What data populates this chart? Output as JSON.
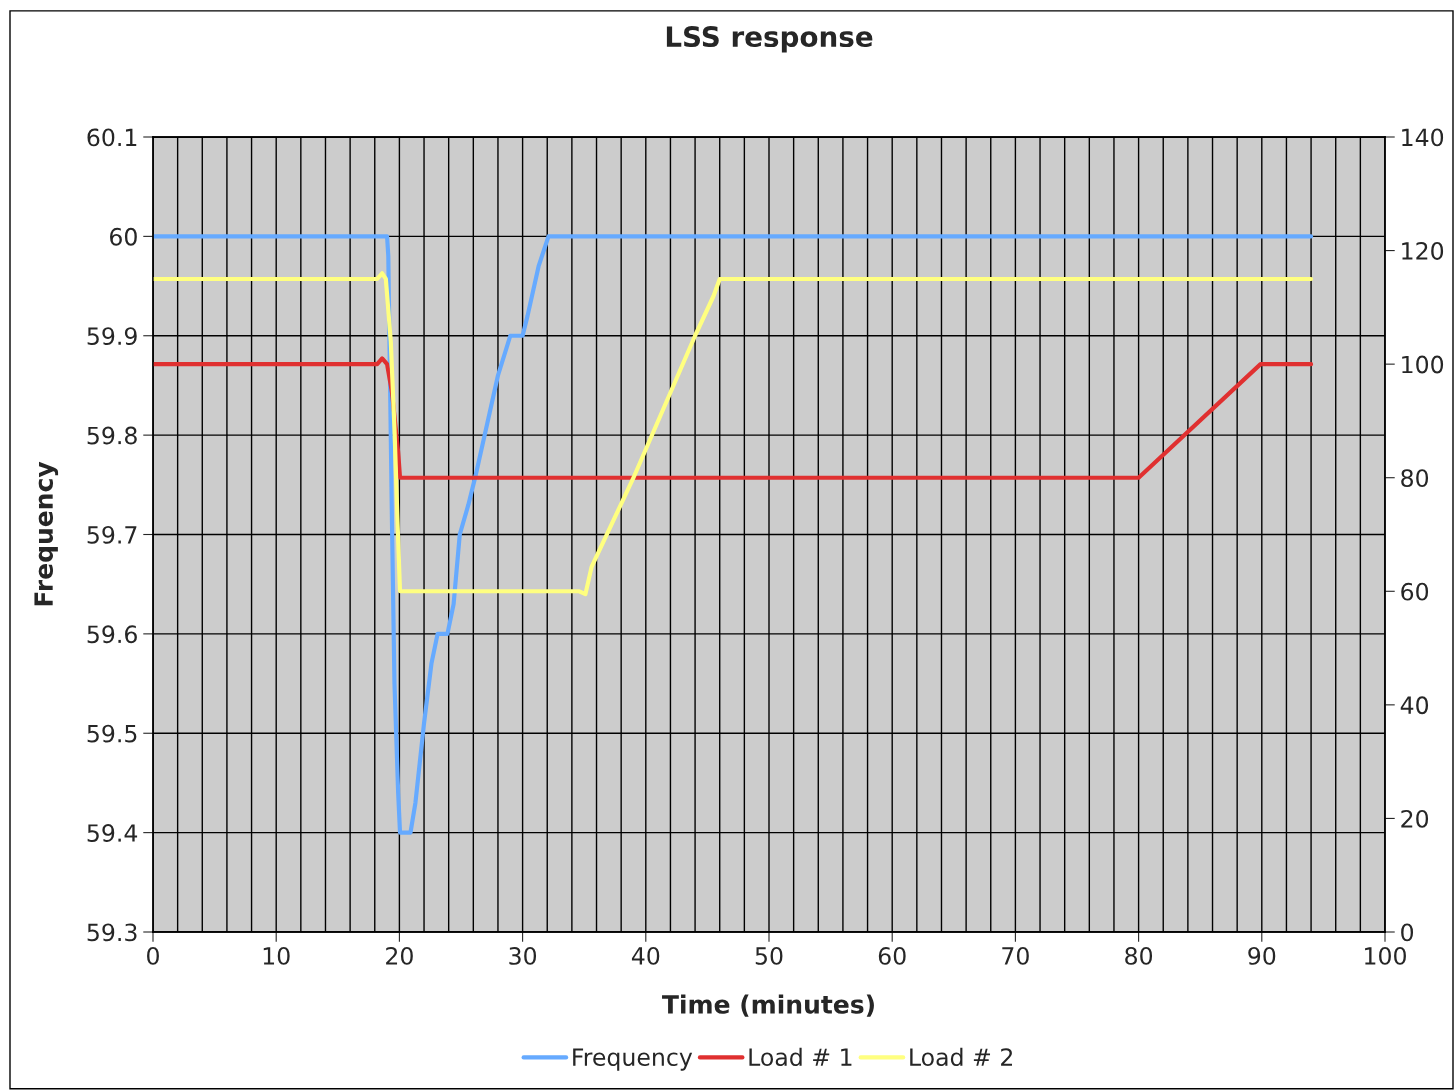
{
  "chart_data": {
    "type": "line",
    "title": "LSS response",
    "xlabel": "Time (minutes)",
    "ylabel": "Frequency",
    "xlim": [
      0,
      100
    ],
    "xticks": [
      0,
      {
        "value": 2,
        "label": null
      },
      {
        "value": 4,
        "label": null
      },
      {
        "value": 6,
        "label": null
      },
      {
        "value": 8,
        "label": null
      },
      10,
      {
        "value": 12,
        "label": null
      },
      {
        "value": 14,
        "label": null
      },
      {
        "value": 16,
        "label": null
      },
      {
        "value": 18,
        "label": null
      },
      20,
      {
        "value": 22,
        "label": null
      },
      {
        "value": 24,
        "label": null
      },
      {
        "value": 26,
        "label": null
      },
      {
        "value": 28,
        "label": null
      },
      30,
      {
        "value": 32,
        "label": null
      },
      {
        "value": 34,
        "label": null
      },
      {
        "value": 36,
        "label": null
      },
      {
        "value": 38,
        "label": null
      },
      40,
      {
        "value": 42,
        "label": null
      },
      {
        "value": 44,
        "label": null
      },
      {
        "value": 46,
        "label": null
      },
      {
        "value": 48,
        "label": null
      },
      50,
      {
        "value": 52,
        "label": null
      },
      {
        "value": 54,
        "label": null
      },
      {
        "value": 56,
        "label": null
      },
      {
        "value": 58,
        "label": null
      },
      60,
      {
        "value": 62,
        "label": null
      },
      {
        "value": 64,
        "label": null
      },
      {
        "value": 66,
        "label": null
      },
      {
        "value": 68,
        "label": null
      },
      70,
      {
        "value": 72,
        "label": null
      },
      {
        "value": 74,
        "label": null
      },
      {
        "value": 76,
        "label": null
      },
      {
        "value": 78,
        "label": null
      },
      80,
      {
        "value": 82,
        "label": null
      },
      {
        "value": 84,
        "label": null
      },
      {
        "value": 86,
        "label": null
      },
      {
        "value": 88,
        "label": null
      },
      90,
      {
        "value": 92,
        "label": null
      },
      {
        "value": 94,
        "label": null
      },
      {
        "value": 96,
        "label": null
      },
      {
        "value": 98,
        "label": null
      },
      100
    ],
    "ylim": [
      59.3,
      60.1
    ],
    "yticks": [
      59.3,
      59.4,
      59.5,
      59.6,
      59.7,
      59.8,
      59.9,
      60,
      60.1
    ],
    "y2lim": [
      0,
      140
    ],
    "y2ticks": [
      0,
      20,
      40,
      60,
      80,
      100,
      120,
      140
    ],
    "grid": true,
    "legend": "bottom",
    "marker": "none",
    "line_style": "solid",
    "series": [
      {
        "name": "Frequency",
        "color": "#66aaff",
        "x": [
          0,
          18.6,
          19.0,
          19.1,
          19.4,
          19.6,
          19.9,
          20.05,
          20.9,
          21.3,
          22.0,
          22.6,
          23.1,
          23.9,
          24.4,
          24.9,
          25.6,
          26.2,
          28.0,
          29.0,
          30.0,
          30.4,
          31.3,
          32.1,
          94
        ],
        "values": [
          60.0,
          60.0,
          60.0,
          59.98,
          59.71,
          59.55,
          59.44,
          59.4,
          59.4,
          59.43,
          59.51,
          59.57,
          59.6,
          59.6,
          59.63,
          59.7,
          59.73,
          59.76,
          59.86,
          59.9,
          59.9,
          59.92,
          59.97,
          60.0,
          60.0
        ]
      },
      {
        "name": "Load # 1",
        "color": "#e03030",
        "axis": "y2",
        "x": [
          0,
          18.2,
          18.6,
          19.0,
          19.4,
          19.9,
          20.05,
          20.6,
          80,
          89.9,
          94
        ],
        "values": [
          100,
          100,
          101,
          100,
          95,
          84.5,
          80,
          80,
          80,
          100,
          100
        ]
      },
      {
        "name": "Load # 2",
        "color": "#ffff80",
        "axis": "y2",
        "x": [
          0,
          18.2,
          18.6,
          18.9,
          19.3,
          19.6,
          19.9,
          20.05,
          20.6,
          34.6,
          35.1,
          35.6,
          39.0,
          44.0,
          45.5,
          46.0,
          94
        ],
        "values": [
          115,
          115,
          116,
          115,
          104,
          88.7,
          69,
          60,
          60,
          60,
          59.5,
          64.3,
          80,
          105,
          112,
          115,
          115
        ]
      }
    ]
  }
}
